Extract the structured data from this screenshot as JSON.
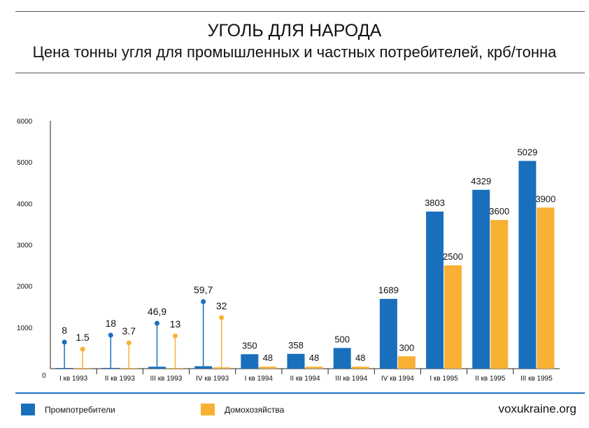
{
  "header": {
    "title": "УГОЛЬ ДЛЯ НАРОДА",
    "subtitle": "Цена тонны угля для промышленных и частных потребителей, крб/тонна"
  },
  "legend": {
    "items": [
      {
        "label": "Промпотребители",
        "color": "#1a6fbc"
      },
      {
        "label": "Домохозяйства",
        "color": "#f8b133"
      }
    ]
  },
  "footer": {
    "source": "voxukraine.org"
  },
  "chart_data": {
    "type": "bar",
    "title": "Цена тонны угля для промышленных и частных потребителей, крб/тонна",
    "xlabel": "",
    "ylabel": "",
    "ylim": [
      0,
      6000
    ],
    "yticks": [
      0,
      1000,
      2000,
      3000,
      4000,
      5000,
      6000
    ],
    "categories": [
      "I кв 1993",
      "II кв 1993",
      "III кв 1993",
      "IV кв 1993",
      "I кв 1994",
      "II кв 1994",
      "III кв 1994",
      "IV кв 1994",
      "I кв 1995",
      "II кв 1995",
      "III кв 1995"
    ],
    "series": [
      {
        "name": "Промпотребители",
        "color": "#1a6fbc",
        "values": [
          8,
          18,
          46.9,
          59.7,
          350,
          358,
          500,
          1689,
          3803,
          4329,
          5029
        ],
        "labels": [
          "8",
          "18",
          "46,9",
          "59,7",
          "350",
          "358",
          "500",
          "1689",
          "3803",
          "4329",
          "5029"
        ]
      },
      {
        "name": "Домохозяйства",
        "color": "#f8b133",
        "values": [
          1.5,
          3.7,
          13,
          32,
          48,
          48,
          48,
          300,
          2500,
          3600,
          3900
        ],
        "labels": [
          "1.5",
          "3.7",
          "13",
          "32",
          "48",
          "48",
          "48",
          "300",
          "2500",
          "3600",
          "3900"
        ]
      }
    ],
    "small_value_callouts": [
      0,
      1,
      2,
      3
    ],
    "grid": false
  }
}
